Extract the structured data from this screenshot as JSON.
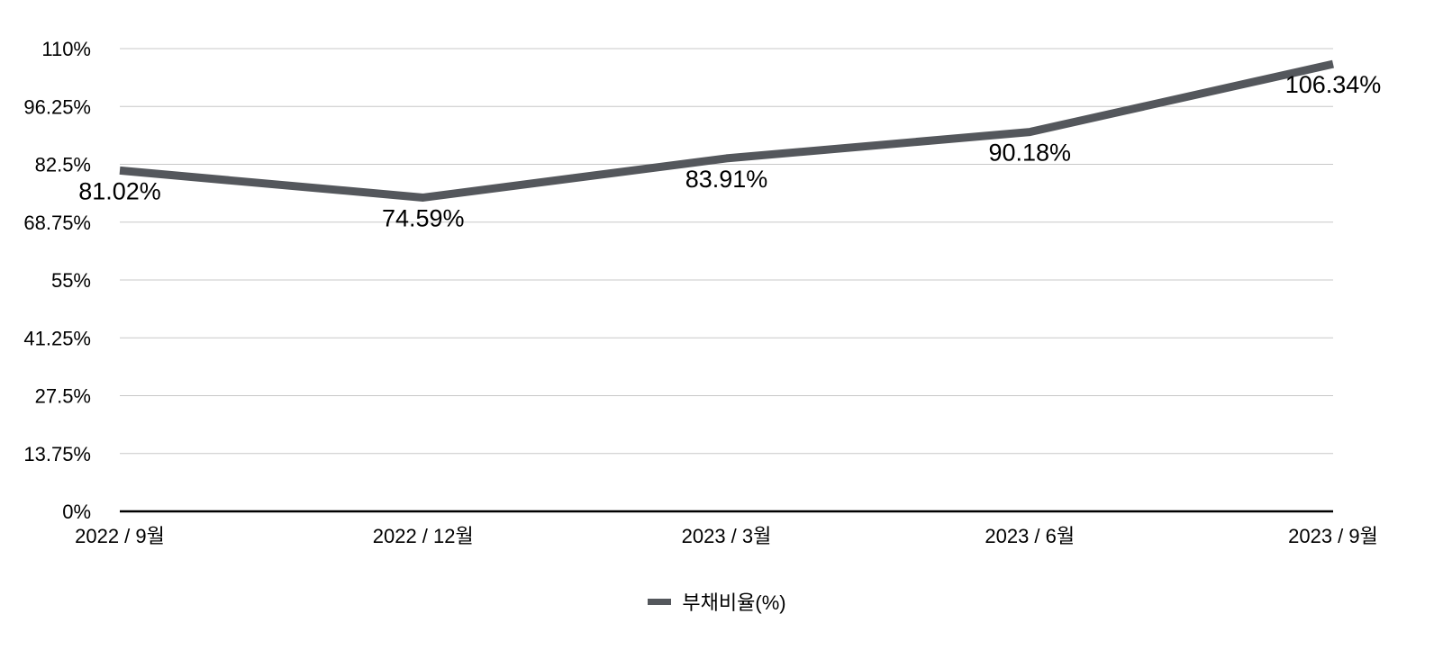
{
  "chart_data": {
    "type": "line",
    "categories": [
      "2022 / 9월",
      "2022 / 12월",
      "2023 / 3월",
      "2023 / 6월",
      "2023 / 9월"
    ],
    "series": [
      {
        "name": "부채비율(%)",
        "values": [
          81.02,
          74.59,
          83.91,
          90.18,
          106.34
        ],
        "labels": [
          "81.02%",
          "74.59%",
          "83.91%",
          "90.18%",
          "106.34%"
        ],
        "color": "#54575c"
      }
    ],
    "ylim": [
      0,
      110
    ],
    "yticks": [
      0,
      13.75,
      27.5,
      41.25,
      55,
      68.75,
      82.5,
      96.25,
      110
    ],
    "ytick_labels": [
      "0%",
      "13.75%",
      "27.5%",
      "41.25%",
      "55%",
      "68.75%",
      "82.5%",
      "96.25%",
      "110%"
    ],
    "grid": true,
    "legend_position": "bottom-center",
    "gridline_color": "#c8c8c8",
    "axis_color": "#000000"
  }
}
